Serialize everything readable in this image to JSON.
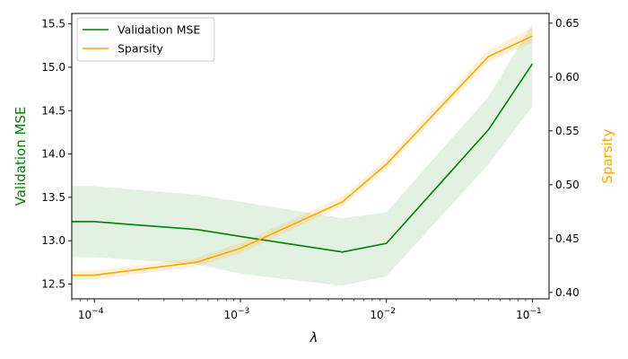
{
  "chart_data": {
    "type": "line",
    "xscale": "log",
    "x": [
      0.0001,
      0.0005,
      0.001,
      0.005,
      0.01,
      0.05,
      0.1
    ],
    "xlim": [
      7e-05,
      0.13
    ],
    "xlabel": "λ",
    "xticks": [
      {
        "value": 0.0001,
        "label": "10",
        "exp": "−4"
      },
      {
        "value": 0.001,
        "label": "10",
        "exp": "−3"
      },
      {
        "value": 0.01,
        "label": "10",
        "exp": "−2"
      },
      {
        "value": 0.1,
        "label": "10",
        "exp": "−1"
      }
    ],
    "y_left": {
      "label": "Validation MSE",
      "color": "#008000",
      "lim": [
        12.33,
        15.62
      ],
      "ticks": [
        12.5,
        13.0,
        13.5,
        14.0,
        14.5,
        15.0,
        15.5
      ],
      "tick_labels": [
        "12.5",
        "13.0",
        "13.5",
        "14.0",
        "14.5",
        "15.0",
        "15.5"
      ]
    },
    "y_right": {
      "label": "Sparsity",
      "color": "#FFA500",
      "lim": [
        0.394,
        0.659
      ],
      "ticks": [
        0.4,
        0.45,
        0.5,
        0.55,
        0.6,
        0.65
      ],
      "tick_labels": [
        "0.40",
        "0.45",
        "0.50",
        "0.55",
        "0.60",
        "0.65"
      ]
    },
    "series": [
      {
        "name": "Validation MSE",
        "axis": "left",
        "color": "#008000",
        "values": [
          13.22,
          13.13,
          13.05,
          12.87,
          12.97,
          14.28,
          15.04
        ],
        "lower": [
          12.81,
          12.73,
          12.62,
          12.48,
          12.59,
          13.88,
          14.55
        ],
        "upper": [
          13.63,
          13.53,
          13.45,
          13.26,
          13.33,
          14.66,
          15.5
        ]
      },
      {
        "name": "Sparsity",
        "axis": "right",
        "color": "#FFA500",
        "values": [
          0.416,
          0.428,
          0.441,
          0.484,
          0.519,
          0.619,
          0.638
        ],
        "lower": [
          0.412,
          0.424,
          0.436,
          0.48,
          0.515,
          0.614,
          0.632
        ],
        "upper": [
          0.42,
          0.432,
          0.446,
          0.489,
          0.524,
          0.625,
          0.646
        ]
      }
    ],
    "legend": {
      "position": "top-left",
      "entries": [
        "Validation MSE",
        "Sparsity"
      ]
    },
    "grid": false
  }
}
